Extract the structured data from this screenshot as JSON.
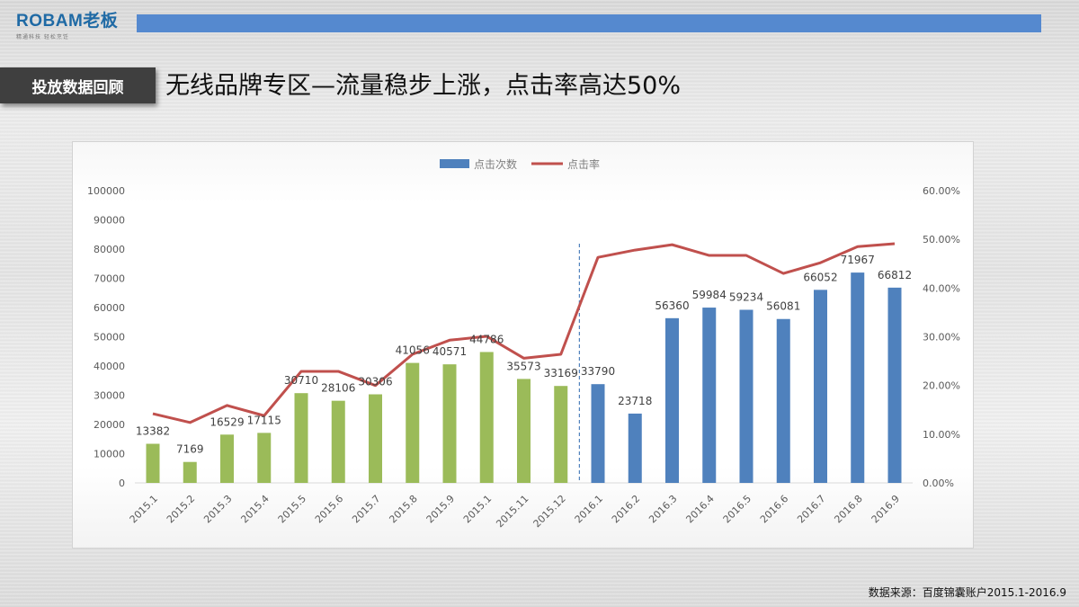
{
  "header": {
    "logo_text": "ROBAM老板",
    "logo_tagline": "精通科技 轻松烹饪",
    "accent_bar_color": "#5589cf"
  },
  "section_tag": "投放数据回顾",
  "headline": "无线品牌专区—流量稳步上涨，点击率高达50%",
  "footer": {
    "source": "数据来源：百度锦囊账户2015.1-2016.9"
  },
  "chart_data": {
    "type": "bar",
    "title": "",
    "categories": [
      "2015.1",
      "2015.2",
      "2015.3",
      "2015.4",
      "2015.5",
      "2015.6",
      "2015.7",
      "2015.8",
      "2015.9",
      "2015.1",
      "2015.11",
      "2015.12",
      "2016.1",
      "2016.2",
      "2016.3",
      "2016.4",
      "2016.5",
      "2016.6",
      "2016.7",
      "2016.8",
      "2016.9"
    ],
    "series": [
      {
        "name": "点击次数",
        "type": "bar",
        "axis": "left",
        "values": [
          13382,
          7169,
          16529,
          17115,
          30710,
          28106,
          30306,
          41056,
          40571,
          44786,
          35573,
          33169,
          33790,
          23718,
          56360,
          59984,
          59234,
          56081,
          66052,
          71967,
          66812
        ],
        "colors": {
          "2015": "#9bbb59",
          "2016": "#4f81bd"
        }
      },
      {
        "name": "点击率",
        "type": "line",
        "axis": "right",
        "color": "#c0504d",
        "values": [
          14.2,
          12.4,
          15.9,
          13.8,
          22.9,
          22.9,
          20.0,
          26.4,
          29.3,
          30.1,
          25.6,
          26.4,
          46.3,
          47.8,
          48.9,
          46.7,
          46.7,
          43.0,
          45.2,
          48.5,
          49.1
        ]
      }
    ],
    "left_axis": {
      "ylim": [
        0,
        100000
      ],
      "ticks": [
        "0",
        "10000",
        "20000",
        "30000",
        "40000",
        "50000",
        "60000",
        "70000",
        "80000",
        "90000",
        "100000"
      ]
    },
    "right_axis": {
      "ylim": [
        0,
        60
      ],
      "ticks": [
        "0.00%",
        "10.00%",
        "20.00%",
        "30.00%",
        "40.00%",
        "50.00%",
        "60.00%"
      ]
    },
    "legend": {
      "position": "top",
      "entries": [
        "点击次数",
        "点击率"
      ]
    },
    "annotations": [
      {
        "type": "dashed-vertical-line",
        "between": [
          "2015.12",
          "2016.1"
        ],
        "color": "#4f81bd"
      }
    ],
    "grid": false,
    "xlabel": "",
    "ylabel": ""
  }
}
